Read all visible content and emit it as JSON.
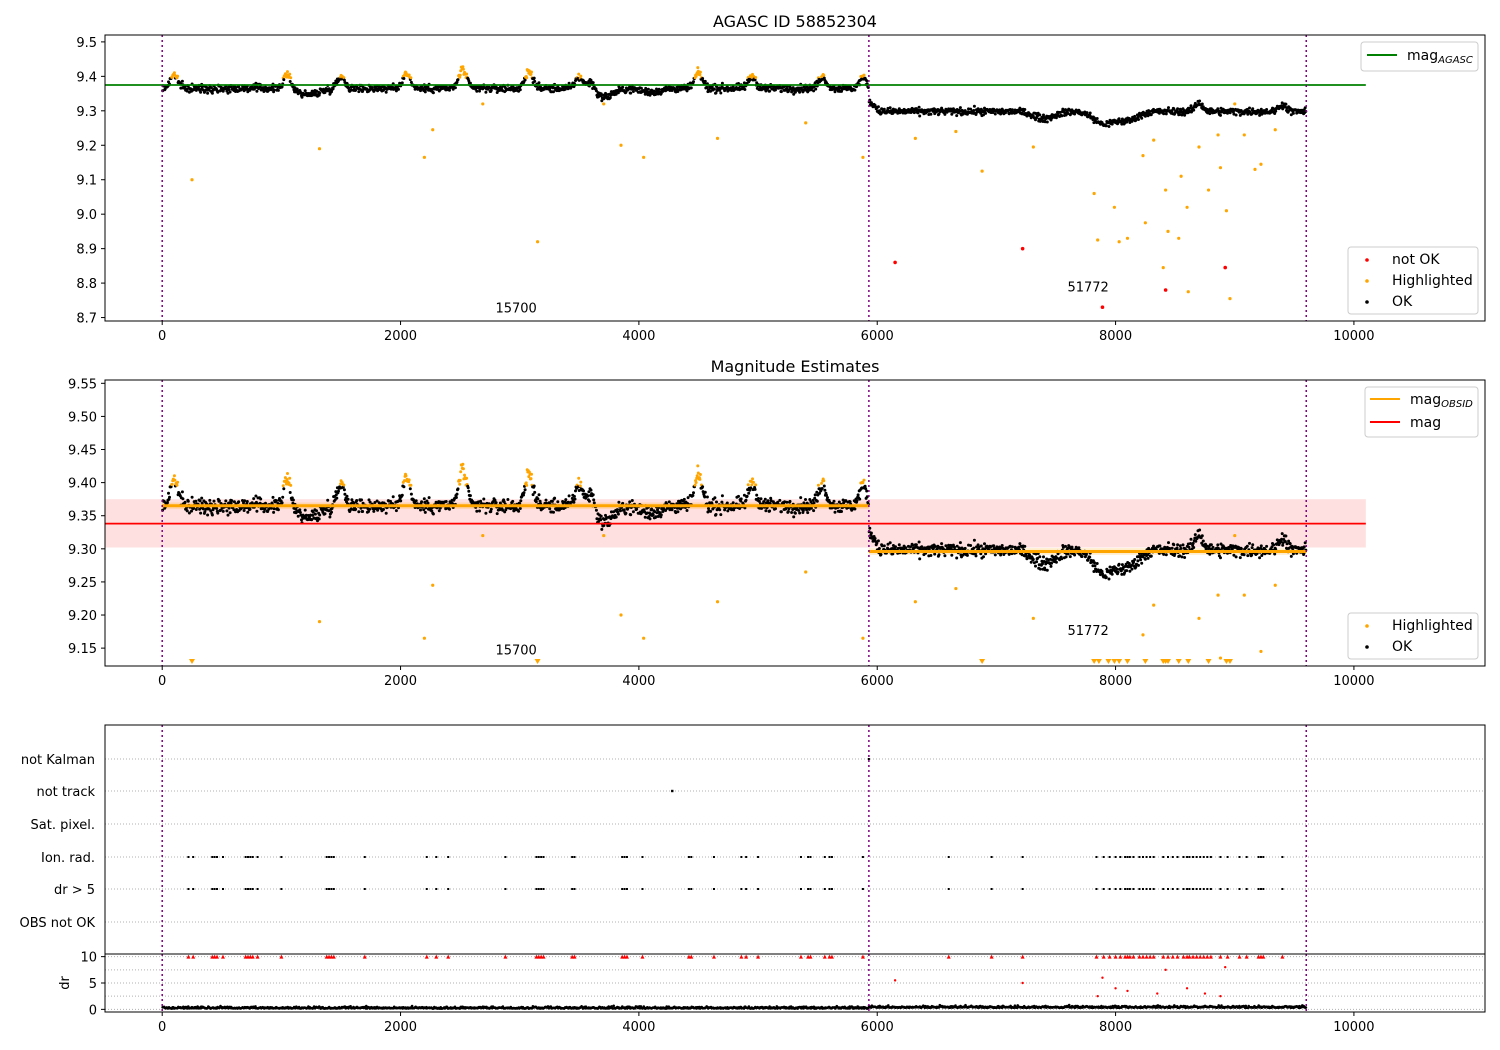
{
  "chart_data": [
    {
      "type": "scatter",
      "title": "AGASC ID 58852304",
      "xlim": [
        -480,
        11100
      ],
      "ylim": [
        8.69,
        9.52
      ],
      "xticks": [
        0,
        2000,
        4000,
        6000,
        8000,
        10000
      ],
      "yticks": [
        8.7,
        8.8,
        8.9,
        9.0,
        9.1,
        9.2,
        9.3,
        9.4,
        9.5
      ],
      "grid": false,
      "legend_upper": {
        "placement": "top-right",
        "entries": [
          {
            "label": "mag",
            "sub": "AGASC",
            "color": "#008000",
            "kind": "line"
          }
        ]
      },
      "legend_lower": {
        "placement": "bottom-right",
        "entries": [
          {
            "label": "not OK",
            "color": "#ff0000",
            "kind": "point"
          },
          {
            "label": "Highlighted",
            "color": "#ffa500",
            "kind": "point"
          },
          {
            "label": "OK",
            "color": "#000000",
            "kind": "point"
          }
        ]
      },
      "vlines": [
        0,
        5930,
        9600
      ],
      "hlines": [
        {
          "series": "mag_AGASC",
          "y": 9.375,
          "x": [
            -480,
            10100
          ],
          "color": "#008000"
        }
      ],
      "annotations": [
        {
          "text": "15700",
          "x": 2970,
          "y": 8.715
        },
        {
          "text": "51772",
          "x": 7770,
          "y": 8.775
        }
      ],
      "segments": [
        {
          "obsid": "15700",
          "x": [
            0,
            5930
          ],
          "center": 9.365,
          "noise": 0.011,
          "lo": 9.33,
          "bumps": [
            [
              100,
              0.04
            ],
            [
              1050,
              0.04
            ],
            [
              1500,
              0.035
            ],
            [
              2050,
              0.045
            ],
            [
              2520,
              0.055
            ],
            [
              3080,
              0.05
            ],
            [
              3500,
              0.035
            ],
            [
              3600,
              0.03
            ],
            [
              4500,
              0.045
            ],
            [
              4950,
              0.035
            ],
            [
              5540,
              0.035
            ],
            [
              5880,
              0.03
            ]
          ],
          "dips": [
            [
              1230,
              0.018
            ],
            [
              3700,
              0.025
            ],
            [
              4100,
              0.01
            ]
          ]
        },
        {
          "obsid": "51772",
          "x": [
            5930,
            9600
          ],
          "center": 9.298,
          "noise": 0.01,
          "lo": 9.255,
          "bumps": [
            [
              5950,
              0.025
            ],
            [
              8700,
              0.025
            ],
            [
              9400,
              0.02
            ]
          ],
          "dips": [
            [
              7400,
              0.02
            ],
            [
              7900,
              0.035
            ],
            [
              8100,
              0.025
            ]
          ]
        }
      ],
      "highlighted_outliers": [
        [
          250,
          9.1
        ],
        [
          1320,
          9.19
        ],
        [
          2200,
          9.165
        ],
        [
          2270,
          9.245
        ],
        [
          2690,
          9.32
        ],
        [
          3150,
          8.92
        ],
        [
          3705,
          9.32
        ],
        [
          3850,
          9.2
        ],
        [
          4040,
          9.165
        ],
        [
          4660,
          9.22
        ],
        [
          5400,
          9.265
        ],
        [
          5880,
          9.165
        ],
        [
          6320,
          9.22
        ],
        [
          6660,
          9.24
        ],
        [
          6880,
          9.125
        ],
        [
          7310,
          9.195
        ],
        [
          7820,
          9.06
        ],
        [
          7850,
          8.925
        ],
        [
          7990,
          9.02
        ],
        [
          8030,
          8.92
        ],
        [
          8100,
          8.93
        ],
        [
          8250,
          8.975
        ],
        [
          8320,
          9.215
        ],
        [
          8400,
          8.845
        ],
        [
          8420,
          9.07
        ],
        [
          8440,
          8.95
        ],
        [
          8530,
          8.93
        ],
        [
          8550,
          9.11
        ],
        [
          8600,
          9.02
        ],
        [
          8610,
          8.775
        ],
        [
          8780,
          9.07
        ],
        [
          8880,
          9.135
        ],
        [
          8930,
          9.01
        ],
        [
          8960,
          8.755
        ],
        [
          9080,
          9.23
        ],
        [
          9170,
          9.13
        ],
        [
          9220,
          9.145
        ],
        [
          9340,
          9.245
        ],
        [
          8230,
          9.17
        ],
        [
          8700,
          9.195
        ],
        [
          8860,
          9.23
        ],
        [
          9000,
          9.32
        ]
      ],
      "not_ok_points": [
        [
          6150,
          8.86
        ],
        [
          7220,
          8.9
        ],
        [
          7890,
          8.73
        ],
        [
          8420,
          8.78
        ],
        [
          8920,
          8.845
        ]
      ]
    },
    {
      "type": "scatter",
      "title": "Magnitude Estimates",
      "xlim": [
        -480,
        11100
      ],
      "ylim": [
        9.123,
        9.555
      ],
      "xticks": [
        0,
        2000,
        4000,
        6000,
        8000,
        10000
      ],
      "yticks": [
        9.15,
        9.2,
        9.25,
        9.3,
        9.35,
        9.4,
        9.45,
        9.5,
        9.55
      ],
      "grid": false,
      "legend_upper": {
        "placement": "top-right",
        "entries": [
          {
            "label": "mag",
            "sub": "OBSID",
            "color": "#ffa500",
            "kind": "line"
          },
          {
            "label": "mag",
            "sub": "",
            "color": "#ff0000",
            "kind": "line"
          }
        ]
      },
      "legend_lower": {
        "placement": "bottom-right",
        "entries": [
          {
            "label": "Highlighted",
            "color": "#ffa500",
            "kind": "point"
          },
          {
            "label": "OK",
            "color": "#000000",
            "kind": "point"
          }
        ]
      },
      "vlines": [
        0,
        5930,
        9600
      ],
      "mag_band": {
        "y": 9.338,
        "lo": 9.302,
        "hi": 9.375,
        "x": [
          -480,
          10100
        ],
        "color": "#ff0000"
      },
      "obsid_lines": [
        {
          "x": [
            0,
            5930
          ],
          "y": 9.365,
          "band": 0.005
        },
        {
          "x": [
            5930,
            9600
          ],
          "y": 9.296,
          "band": 0.005
        }
      ],
      "annotations": [
        {
          "text": "15700",
          "x": 2970,
          "y": 9.14
        },
        {
          "text": "51772",
          "x": 7770,
          "y": 9.17
        }
      ],
      "triangle_markers_x": [
        250,
        3150,
        6880,
        7820,
        7860,
        7940,
        7990,
        8030,
        8100,
        8250,
        8400,
        8420,
        8440,
        8530,
        8610,
        8780,
        8930,
        8960
      ]
    },
    {
      "type": "scatter",
      "title": "",
      "categories": [
        "not Kalman",
        "not track",
        "Sat. pixel.",
        "Ion. rad.",
        "dr > 5",
        "OBS not OK"
      ],
      "flag_events_x": [
        220,
        260,
        420,
        440,
        460,
        510,
        700,
        720,
        740,
        760,
        800,
        1000,
        1380,
        1400,
        1420,
        1440,
        1700,
        2220,
        2300,
        2400,
        2880,
        3140,
        3160,
        3180,
        3200,
        3440,
        3460,
        3860,
        3880,
        3900,
        4030,
        4420,
        4440,
        4630,
        4860,
        4900,
        5000,
        5360,
        5420,
        5440,
        5560,
        5600,
        5620,
        5880,
        6600,
        6960,
        7220,
        7840,
        7900,
        7950,
        8000,
        8040,
        8080,
        8100,
        8120,
        8150,
        8200,
        8230,
        8260,
        8290,
        8320,
        8400,
        8440,
        8480,
        8520,
        8570,
        8600,
        8620,
        8650,
        8680,
        8710,
        8740,
        8770,
        8800,
        8880,
        8940,
        9040,
        9100,
        9200,
        9220,
        9240,
        9400
      ],
      "not_track_x": [
        4280
      ],
      "not_kalman_x": [
        5930
      ]
    },
    {
      "type": "scatter",
      "title": "",
      "ylabel": "dr",
      "xlim": [
        -480,
        11100
      ],
      "ylim": [
        -0.5,
        10.5
      ],
      "xticks": [
        0,
        2000,
        4000,
        6000,
        8000,
        10000
      ],
      "yticks": [
        0,
        5,
        10
      ],
      "grid": true,
      "dr_outliers": [
        [
          6150,
          5.5
        ],
        [
          7220,
          5
        ],
        [
          7890,
          6
        ],
        [
          8420,
          7.5
        ],
        [
          8920,
          8
        ],
        [
          8000,
          4
        ],
        [
          8100,
          3.5
        ],
        [
          8600,
          4
        ],
        [
          8350,
          3
        ],
        [
          7850,
          2.5
        ],
        [
          8750,
          3
        ],
        [
          8880,
          2.5
        ]
      ]
    }
  ]
}
